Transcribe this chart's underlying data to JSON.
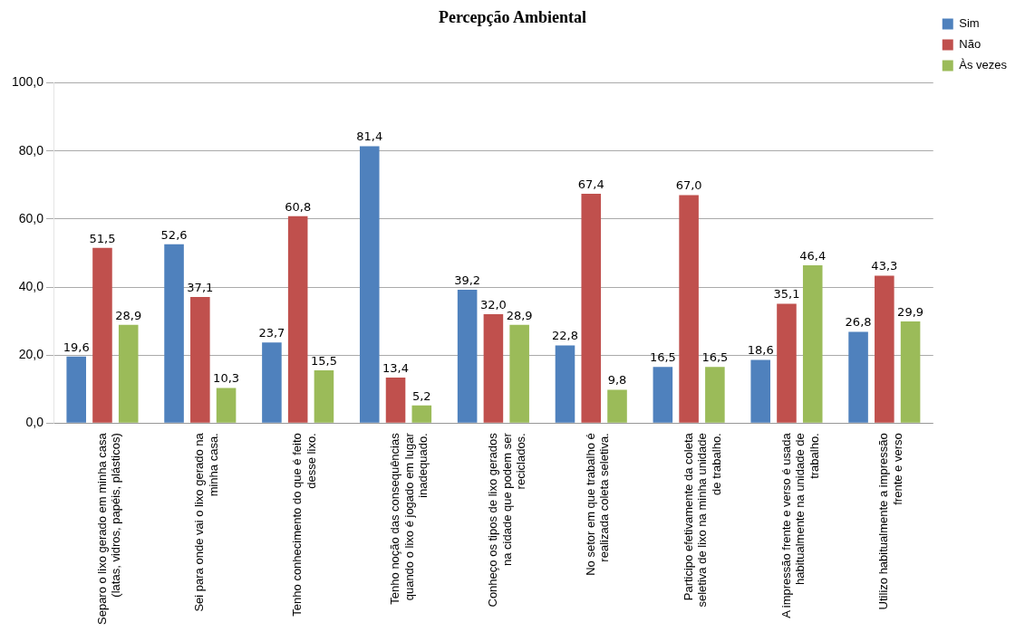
{
  "chart_data": {
    "type": "bar",
    "title": "Percepção Ambiental",
    "categories": [
      "Separo o lixo gerado em minha casa (latas, vidros, papéis, plásticos)",
      "Sei para onde vai o lixo gerado na minha casa.",
      "Tenho conhecimento do que é feito desse lixo.",
      "Tenho noção das consequências quando o lixo é jogado em lugar inadequado.",
      "Conheço os tipos de lixo gerados na cidade que podem ser reciclados.",
      "No setor em que trabalho é realizada coleta seletiva.",
      "Participo efetivamente da coleta seletiva de lixo na minha unidade de trabalho.",
      "A impressão frente e verso é usada habitualmente na unidade de trabalho.",
      "Utilizo habitualmente a impressão frente e verso"
    ],
    "series": [
      {
        "name": "Sim",
        "color": "#4f81bd",
        "values": [
          19.6,
          52.6,
          23.7,
          81.4,
          39.2,
          22.8,
          16.5,
          18.6,
          26.8
        ],
        "value_labels": [
          "19,6",
          "52,6",
          "23,7",
          "81,4",
          "39,2",
          "22,8",
          "16,5",
          "18,6",
          "26,8"
        ]
      },
      {
        "name": "Não",
        "color": "#c0504d",
        "values": [
          51.5,
          37.1,
          60.8,
          13.4,
          32.0,
          67.4,
          67.0,
          35.1,
          43.3
        ],
        "value_labels": [
          "51,5",
          "37,1",
          "60,8",
          "13,4",
          "32,0",
          "67,4",
          "67,0",
          "35,1",
          "43,3"
        ]
      },
      {
        "name": "Às vezes",
        "color": "#9bbb59",
        "values": [
          28.9,
          10.3,
          15.5,
          5.2,
          28.9,
          9.8,
          16.5,
          46.4,
          29.9
        ],
        "value_labels": [
          "28,9",
          "10,3",
          "15,5",
          "5,2",
          "28,9",
          "9,8",
          "16,5",
          "46,4",
          "29,9"
        ]
      }
    ],
    "ylim": [
      0,
      100
    ],
    "yticks": [
      {
        "value": 0,
        "label": "0,0"
      },
      {
        "value": 20,
        "label": "20,0"
      },
      {
        "value": 40,
        "label": "40,0"
      },
      {
        "value": 60,
        "label": "60,0"
      },
      {
        "value": 80,
        "label": "80,0"
      },
      {
        "value": 100,
        "label": "100,0"
      }
    ],
    "grid": "y",
    "legend": "top right"
  }
}
